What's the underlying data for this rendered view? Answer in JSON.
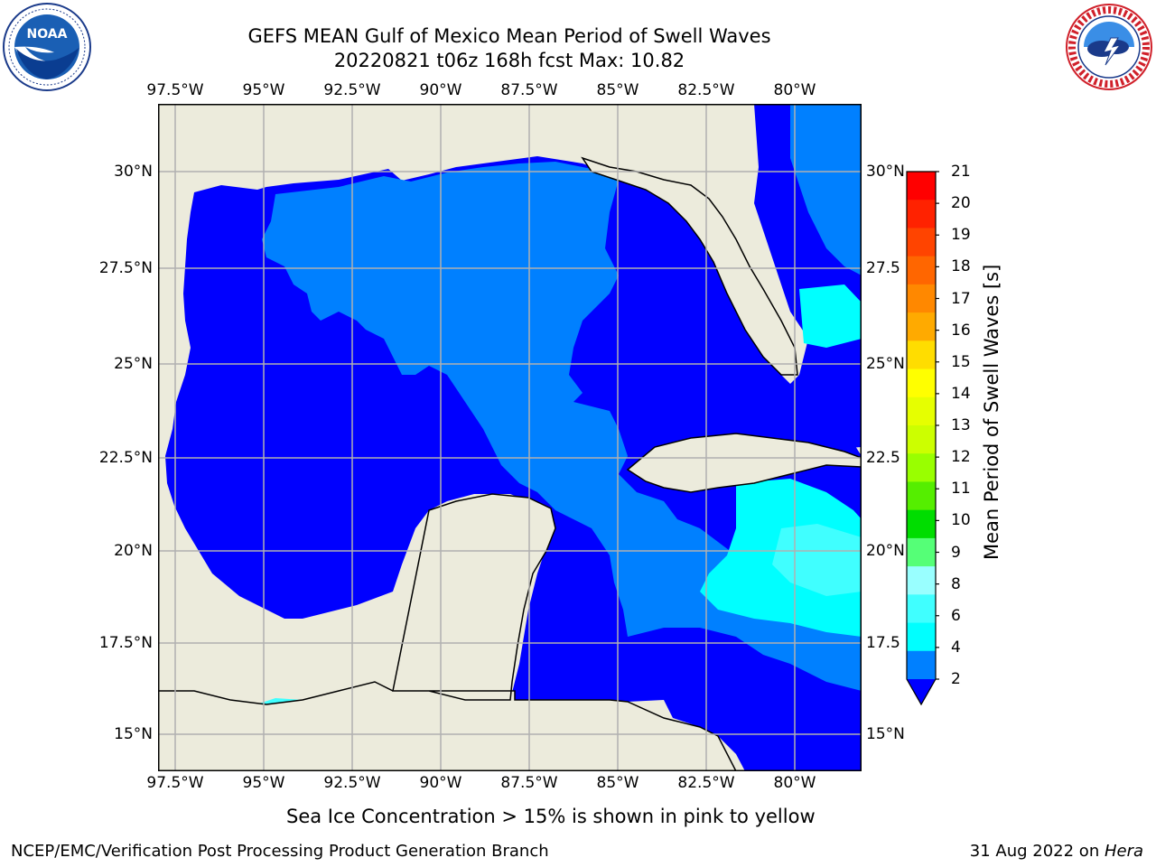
{
  "title": {
    "line1": "GEFS MEAN Gulf of Mexico Mean Period of Swell Waves",
    "line2": "20220821 t06z 168h fcst   Max: 10.82"
  },
  "logos": {
    "left": {
      "icon": "noaa-logo",
      "text": "NOAA",
      "ring_text": "NATIONAL OCEANIC AND ATMOSPHERIC ADMINISTRATION · U.S. DEPARTMENT OF COMMERCE"
    },
    "right": {
      "icon": "nws-logo",
      "ring_text": "NATIONAL WEATHER SERVICE"
    }
  },
  "map": {
    "lon_ticks": [
      "97.5°W",
      "95°W",
      "92.5°W",
      "90°W",
      "87.5°W",
      "85°W",
      "82.5°W",
      "80°W"
    ],
    "lat_ticks_left": [
      "30°N",
      "27.5°N",
      "25°N",
      "22.5°N",
      "20°N",
      "17.5°N",
      "15°N"
    ],
    "lat_ticks_right": [
      "30°N",
      "27.5",
      "25°N",
      "22.5",
      "20°N",
      "17.5",
      "15°N"
    ],
    "colors": {
      "land": "#ecebdc",
      "c2_4": "#0000ff",
      "c4_6": "#0080ff",
      "c6_7": "#00ffff",
      "c7_8": "#40ffff",
      "grid": "#b0b0b0"
    }
  },
  "colorbar": {
    "label": "Mean Period of Swell Waves [s]",
    "ticks": [
      "21",
      "20",
      "19",
      "18",
      "17",
      "16",
      "15",
      "14",
      "13",
      "12",
      "11",
      "10",
      "9",
      "8",
      "6",
      "4",
      "2"
    ],
    "colors": [
      "#ff0000",
      "#ff2200",
      "#ff4400",
      "#ff6600",
      "#ff8800",
      "#ffaa00",
      "#ffdd00",
      "#ffff00",
      "#e6ff00",
      "#ccff00",
      "#99ff00",
      "#55ee00",
      "#00dd00",
      "#55ff77",
      "#99ffff",
      "#40ffff",
      "#00ffff",
      "#0080ff"
    ],
    "under_color": "#0000ff"
  },
  "note": "Sea Ice Concentration > 15% is shown in pink to yellow",
  "footer": {
    "left": "NCEP/EMC/Verification Post Processing Product Generation Branch",
    "date": "31 Aug 2022 on ",
    "host": "Hera"
  }
}
